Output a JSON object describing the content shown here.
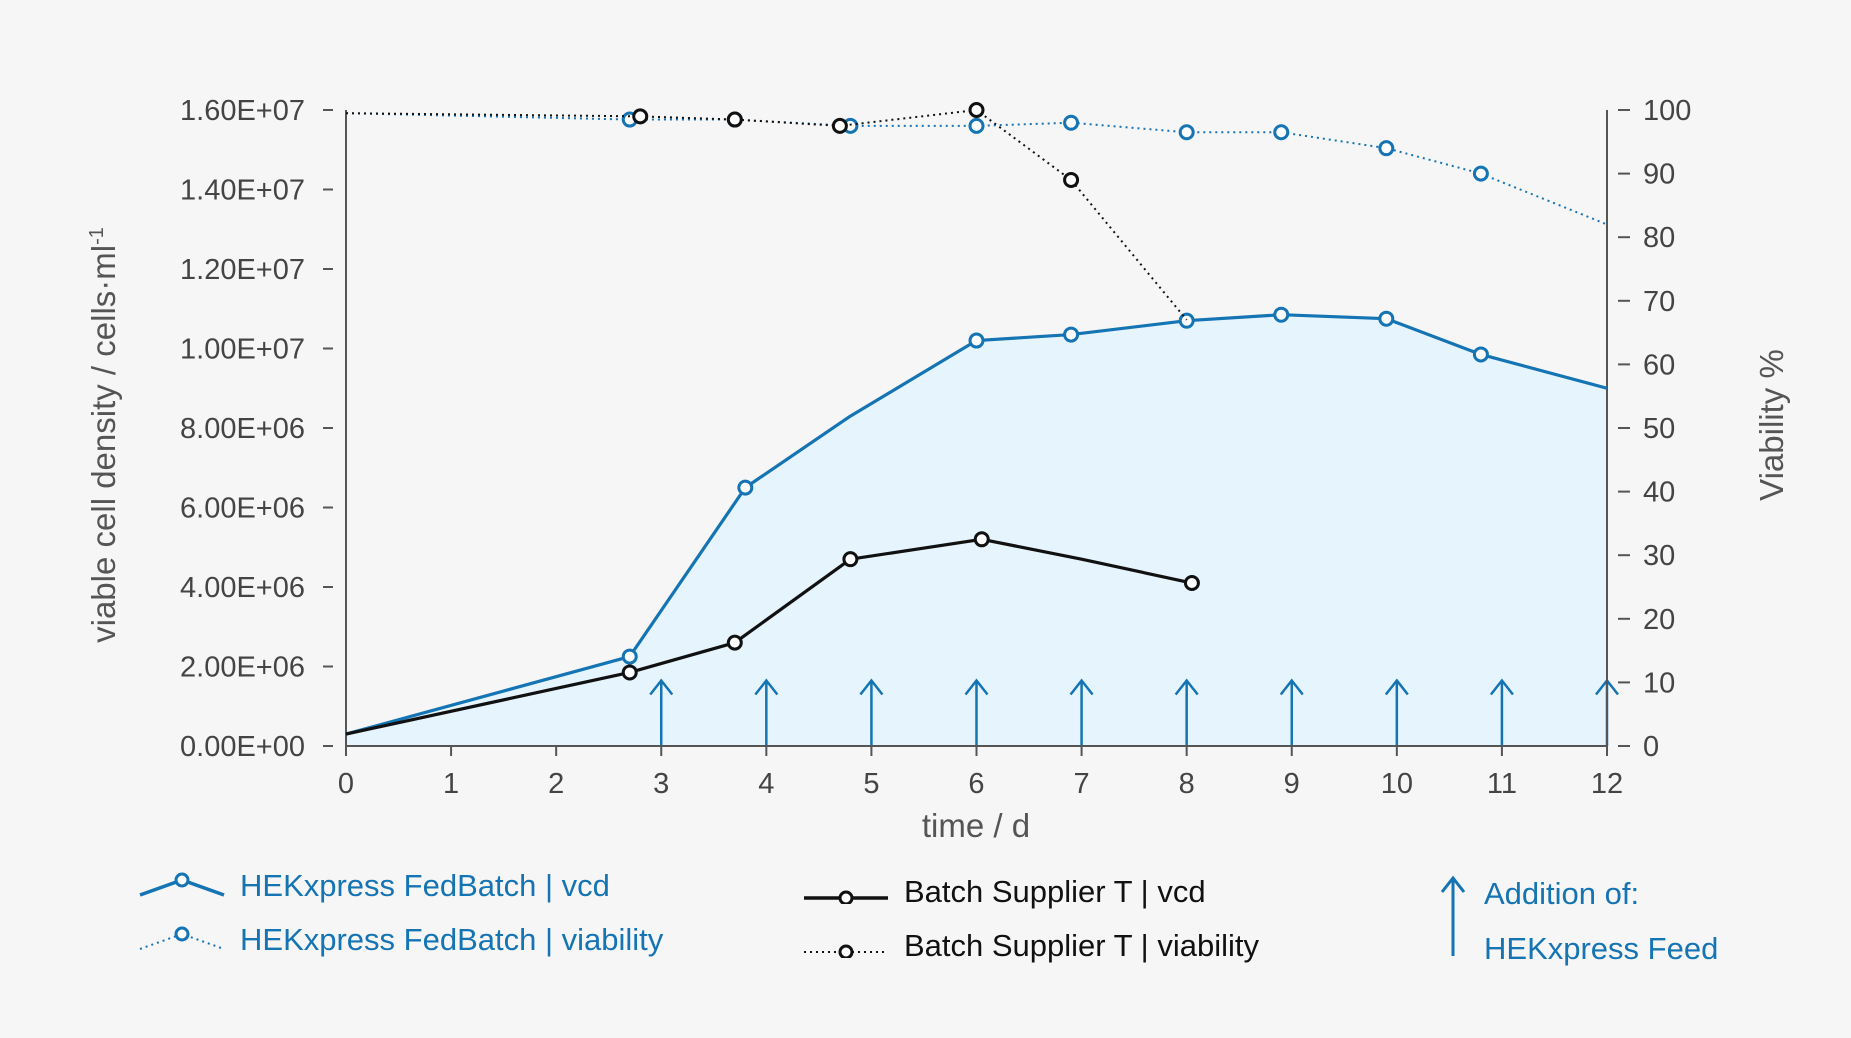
{
  "chart_data": {
    "type": "line",
    "xlabel": "time / d",
    "ylabel_left": "viable cell density / cells·ml",
    "ylabel_left_sup": "-1",
    "ylabel_right": "Viability %",
    "xlim": [
      0,
      12
    ],
    "ylim_left": [
      0,
      16000000
    ],
    "ylim_right": [
      0,
      100
    ],
    "x_ticks": [
      "0",
      "1",
      "2",
      "3",
      "4",
      "5",
      "6",
      "7",
      "8",
      "9",
      "10",
      "11",
      "12"
    ],
    "y_left_ticks": [
      "0.00E+00",
      "2.00E+06",
      "4.00E+06",
      "6.00E+06",
      "8.00E+06",
      "1.00E+07",
      "1.20E+07",
      "1.40E+07",
      "1.60E+07"
    ],
    "y_right_ticks": [
      "0",
      "10",
      "20",
      "30",
      "40",
      "50",
      "60",
      "70",
      "80",
      "90",
      "100"
    ],
    "grid": false,
    "colors": {
      "blue": "#1574b3",
      "black": "#111111",
      "fill": "#e6f4fd",
      "axis": "#555555"
    },
    "series": [
      {
        "name": "HEKxpress FedBatch | vcd",
        "axis": "left",
        "style": "solid",
        "color": "#1574b3",
        "fill": true,
        "points": [
          [
            0,
            300000
          ],
          [
            2.7,
            2250000
          ],
          [
            3.8,
            6500000
          ],
          [
            4.8,
            8300000
          ],
          [
            6.0,
            10200000
          ],
          [
            6.9,
            10350000
          ],
          [
            8.0,
            10700000
          ],
          [
            8.9,
            10850000
          ],
          [
            9.9,
            10750000
          ],
          [
            10.8,
            9850000
          ],
          [
            12.0,
            9000000
          ]
        ],
        "markers": [
          false,
          true,
          true,
          false,
          true,
          true,
          true,
          true,
          true,
          true,
          false
        ]
      },
      {
        "name": "Batch Supplier T | vcd",
        "axis": "left",
        "style": "solid",
        "color": "#111111",
        "fill": false,
        "points": [
          [
            0,
            300000
          ],
          [
            2.7,
            1850000
          ],
          [
            3.7,
            2600000
          ],
          [
            4.8,
            4700000
          ],
          [
            6.05,
            5200000
          ],
          [
            7.0,
            4700000
          ],
          [
            8.05,
            4100000
          ]
        ],
        "markers": [
          false,
          true,
          true,
          true,
          true,
          false,
          true
        ]
      },
      {
        "name": "HEKxpress FedBatch | viability",
        "axis": "right",
        "style": "dotted",
        "color": "#1574b3",
        "fill": false,
        "points": [
          [
            0,
            99.5
          ],
          [
            2.7,
            98.5
          ],
          [
            3.7,
            98.5
          ],
          [
            4.8,
            97.5
          ],
          [
            6.0,
            97.5
          ],
          [
            6.9,
            98
          ],
          [
            8.0,
            96.5
          ],
          [
            8.9,
            96.5
          ],
          [
            9.9,
            94
          ],
          [
            10.8,
            90
          ],
          [
            12.0,
            82
          ]
        ],
        "markers": [
          false,
          true,
          true,
          true,
          true,
          true,
          true,
          true,
          true,
          true,
          false
        ]
      },
      {
        "name": "Batch Supplier T | viability",
        "axis": "right",
        "style": "dotted",
        "color": "#111111",
        "fill": false,
        "points": [
          [
            0,
            99.5
          ],
          [
            2.8,
            99
          ],
          [
            3.7,
            98.5
          ],
          [
            4.7,
            97.5
          ],
          [
            6.0,
            100
          ],
          [
            6.9,
            89
          ],
          [
            8.0,
            67
          ]
        ],
        "markers": [
          false,
          true,
          true,
          true,
          true,
          true,
          false
        ]
      }
    ],
    "feed_arrows_x": [
      3,
      4,
      5,
      6,
      7,
      8,
      9,
      10,
      11,
      12
    ]
  },
  "legend": {
    "fedbatch_vcd": "HEKxpress FedBatch | vcd",
    "fedbatch_viability": "HEKxpress FedBatch | viability",
    "batch_vcd": "Batch Supplier T | vcd",
    "batch_viability": "Batch Supplier T | viability",
    "feed_line1": "Addition of:",
    "feed_line2": "HEKxpress Feed"
  }
}
